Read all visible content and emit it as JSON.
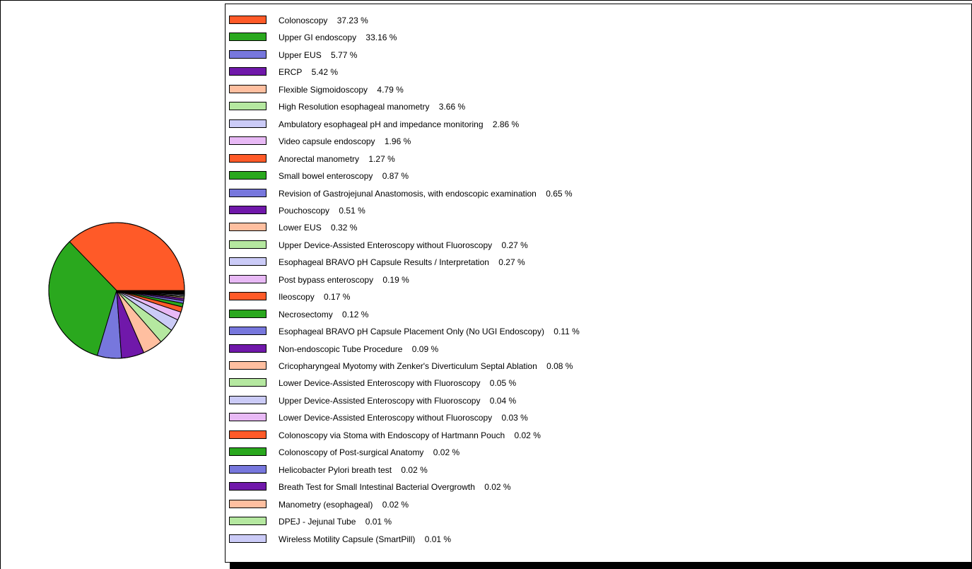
{
  "chart_data": {
    "type": "pie",
    "title": "",
    "legend_placement": "right",
    "colors": [
      "#ff5a28",
      "#2aa81e",
      "#7777dd",
      "#7018aa",
      "#ffbfa0",
      "#b5e8a0",
      "#cbcbf7",
      "#e8b9f5"
    ],
    "slices": [
      {
        "label": "Colonoscopy",
        "value": 37.23,
        "text": "Colonoscopy 37.23 %"
      },
      {
        "label": "Upper GI endoscopy",
        "value": 33.16,
        "text": "Upper GI endoscopy 33.16 %"
      },
      {
        "label": "Upper EUS",
        "value": 5.77,
        "text": "Upper EUS 5.77 %"
      },
      {
        "label": "ERCP",
        "value": 5.42,
        "text": "ERCP 5.42 %"
      },
      {
        "label": "Flexible Sigmoidoscopy",
        "value": 4.79,
        "text": "Flexible Sigmoidoscopy 4.79 %"
      },
      {
        "label": "High Resolution esophageal manometry",
        "value": 3.66,
        "text": "High Resolution esophageal manometry 3.66 %"
      },
      {
        "label": "Ambulatory esophageal pH and impedance monitoring",
        "value": 2.86,
        "text": "Ambulatory esophageal pH and impedance monitoring 2.86 %"
      },
      {
        "label": "Video capsule endoscopy",
        "value": 1.96,
        "text": "Video capsule endoscopy 1.96 %"
      },
      {
        "label": "Anorectal manometry",
        "value": 1.27,
        "text": "Anorectal manometry 1.27 %"
      },
      {
        "label": "Small bowel enteroscopy",
        "value": 0.87,
        "text": "Small bowel enteroscopy 0.87 %"
      },
      {
        "label": "Revision of Gastrojejunal Anastomosis, with endoscopic examination",
        "value": 0.65,
        "text": "Revision of Gastrojejunal Anastomosis, with endoscopic examination 0.65 %"
      },
      {
        "label": "Pouchoscopy",
        "value": 0.51,
        "text": "Pouchoscopy 0.51 %"
      },
      {
        "label": "Lower EUS",
        "value": 0.32,
        "text": "Lower EUS 0.32 %"
      },
      {
        "label": "Upper Device-Assisted Enteroscopy without Fluoroscopy",
        "value": 0.27,
        "text": "Upper Device-Assisted Enteroscopy without Fluoroscopy 0.27 %"
      },
      {
        "label": "Esophageal BRAVO pH Capsule Results / Interpretation",
        "value": 0.27,
        "text": "Esophageal BRAVO pH Capsule Results / Interpretation 0.27 %"
      },
      {
        "label": "Post bypass enteroscopy",
        "value": 0.19,
        "text": "Post bypass enteroscopy 0.19 %"
      },
      {
        "label": "Ileoscopy",
        "value": 0.17,
        "text": "Ileoscopy 0.17 %"
      },
      {
        "label": "Necrosectomy",
        "value": 0.12,
        "text": "Necrosectomy 0.12 %"
      },
      {
        "label": "Esophageal BRAVO pH Capsule Placement Only (No UGI Endoscopy)",
        "value": 0.11,
        "text": "Esophageal BRAVO pH Capsule Placement Only (No UGI Endoscopy) 0.11 %"
      },
      {
        "label": "Non-endoscopic Tube Procedure",
        "value": 0.09,
        "text": "Non-endoscopic Tube Procedure 0.09 %"
      },
      {
        "label": "Cricopharyngeal Myotomy with Zenker's Diverticulum Septal Ablation",
        "value": 0.08,
        "text": "Cricopharyngeal Myotomy with Zenker's Diverticulum Septal Ablation 0.08 %"
      },
      {
        "label": "Lower Device-Assisted Enteroscopy with Fluoroscopy",
        "value": 0.05,
        "text": "Lower Device-Assisted Enteroscopy with Fluoroscopy 0.05 %"
      },
      {
        "label": "Upper Device-Assisted Enteroscopy with Fluoroscopy",
        "value": 0.04,
        "text": "Upper Device-Assisted Enteroscopy with Fluoroscopy 0.04 %"
      },
      {
        "label": "Lower Device-Assisted Enteroscopy without Fluoroscopy",
        "value": 0.03,
        "text": "Lower Device-Assisted Enteroscopy without Fluoroscopy 0.03 %"
      },
      {
        "label": "Colonoscopy via Stoma with Endoscopy of Hartmann Pouch",
        "value": 0.02,
        "text": "Colonoscopy via Stoma with Endoscopy of Hartmann Pouch 0.02 %"
      },
      {
        "label": "Colonoscopy of Post-surgical Anatomy",
        "value": 0.02,
        "text": "Colonoscopy of Post-surgical Anatomy 0.02 %"
      },
      {
        "label": "Helicobacter Pylori breath test",
        "value": 0.02,
        "text": "Helicobacter Pylori breath test 0.02 %"
      },
      {
        "label": "Breath Test for Small Intestinal Bacterial Overgrowth",
        "value": 0.02,
        "text": "Breath Test for Small Intestinal Bacterial Overgrowth 0.02 %"
      },
      {
        "label": "Manometry (esophageal)",
        "value": 0.02,
        "text": "Manometry (esophageal) 0.02 %"
      },
      {
        "label": "DPEJ - Jejunal Tube",
        "value": 0.01,
        "text": "DPEJ - Jejunal Tube 0.01 %"
      },
      {
        "label": "Wireless Motility Capsule (SmartPill)",
        "value": 0.01,
        "text": "Wireless Motility Capsule (SmartPill) 0.01 %"
      }
    ]
  }
}
